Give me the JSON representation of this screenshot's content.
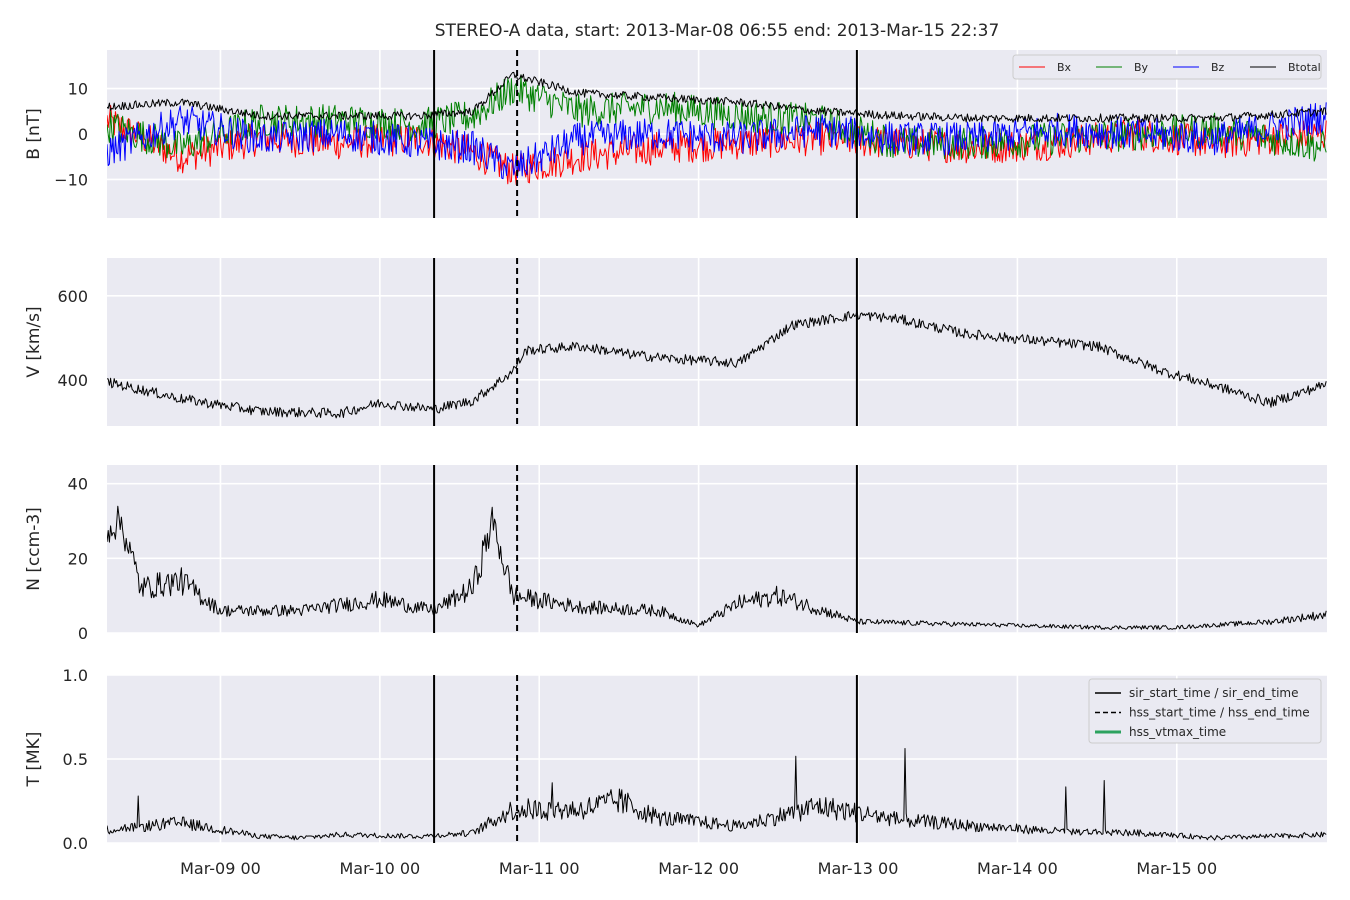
{
  "chart_data": {
    "type": "line",
    "title": "STEREO-A data, start: 2013-Mar-08 06:55  end: 2013-Mar-15 22:37",
    "x_range": [
      "2013-03-08T06:55",
      "2013-03-15T22:37"
    ],
    "x_ticks": [
      "Mar-09 00",
      "Mar-10 00",
      "Mar-11 00",
      "Mar-12 00",
      "Mar-13 00",
      "Mar-14 00",
      "Mar-15 00"
    ],
    "x_tick_dates": [
      "2013-03-09T00:00",
      "2013-03-10T00:00",
      "2013-03-11T00:00",
      "2013-03-12T00:00",
      "2013-03-13T00:00",
      "2013-03-14T00:00",
      "2013-03-15T00:00"
    ],
    "grid": true,
    "vertical_lines": [
      {
        "name": "sir_start_time",
        "time": "2013-03-10T08:10",
        "style": "solid"
      },
      {
        "name": "hss_start_time",
        "time": "2013-03-10T20:40",
        "style": "dashed"
      },
      {
        "name": "sir_end_time",
        "time": "2013-03-12T23:50",
        "style": "solid"
      }
    ],
    "panels": [
      {
        "id": "b",
        "ylabel": "B [nT]",
        "ylim": [
          -18.5,
          18.5
        ],
        "yticks": [
          -10,
          0,
          10
        ],
        "ytick_labels": [
          "−10",
          "0",
          "10"
        ],
        "legend": {
          "placement": "top-right",
          "entries": [
            "Bx",
            "By",
            "Bz",
            "Btotal"
          ]
        },
        "series": [
          {
            "name": "Bx",
            "color": "#ff0000",
            "x": [
              "2013-03-08T06:55",
              "2013-03-08T18:00",
              "2013-03-09T06:00",
              "2013-03-09T18:00",
              "2013-03-10T06:00",
              "2013-03-10T14:00",
              "2013-03-10T20:00",
              "2013-03-11T06:00",
              "2013-03-11T18:00",
              "2013-03-12T06:00",
              "2013-03-12T18:00",
              "2013-03-13T06:00",
              "2013-03-13T18:00",
              "2013-03-14T06:00",
              "2013-03-14T18:00",
              "2013-03-15T06:00",
              "2013-03-15T22:37"
            ],
            "values": [
              3,
              -5,
              -1,
              -2,
              -1,
              -4,
              -8,
              -5,
              -3,
              -2,
              -1,
              -2,
              -3,
              -2,
              0,
              -2,
              0
            ]
          },
          {
            "name": "By",
            "color": "#008000",
            "x": [
              "2013-03-08T06:55",
              "2013-03-08T18:00",
              "2013-03-09T06:00",
              "2013-03-09T18:00",
              "2013-03-10T06:00",
              "2013-03-10T14:00",
              "2013-03-10T20:00",
              "2013-03-11T06:00",
              "2013-03-11T18:00",
              "2013-03-12T06:00",
              "2013-03-12T18:00",
              "2013-03-13T06:00",
              "2013-03-13T18:00",
              "2013-03-14T06:00",
              "2013-03-14T18:00",
              "2013-03-15T06:00",
              "2013-03-15T22:37"
            ],
            "values": [
              2,
              -3,
              3,
              3,
              2,
              4,
              10,
              5,
              6,
              4,
              3,
              -2,
              -2,
              -1,
              0,
              1,
              -3
            ]
          },
          {
            "name": "Bz",
            "color": "#0000ff",
            "x": [
              "2013-03-08T06:55",
              "2013-03-08T18:00",
              "2013-03-09T06:00",
              "2013-03-09T18:00",
              "2013-03-10T06:00",
              "2013-03-10T14:00",
              "2013-03-10T20:00",
              "2013-03-11T06:00",
              "2013-03-11T18:00",
              "2013-03-12T06:00",
              "2013-03-12T18:00",
              "2013-03-13T06:00",
              "2013-03-13T18:00",
              "2013-03-14T06:00",
              "2013-03-14T18:00",
              "2013-03-15T06:00",
              "2013-03-15T22:37"
            ],
            "values": [
              -4,
              3,
              -1,
              0,
              -2,
              -3,
              -8,
              -1,
              0,
              -1,
              1,
              -1,
              -1,
              1,
              0,
              -1,
              4
            ]
          },
          {
            "name": "Btotal",
            "color": "#000000",
            "x": [
              "2013-03-08T06:55",
              "2013-03-08T18:00",
              "2013-03-09T06:00",
              "2013-03-09T18:00",
              "2013-03-10T06:00",
              "2013-03-10T14:00",
              "2013-03-10T20:00",
              "2013-03-11T06:00",
              "2013-03-11T18:00",
              "2013-03-12T06:00",
              "2013-03-12T18:00",
              "2013-03-13T06:00",
              "2013-03-13T18:00",
              "2013-03-14T06:00",
              "2013-03-14T18:00",
              "2013-03-15T06:00",
              "2013-03-15T22:37"
            ],
            "values": [
              6,
              7,
              4,
              4,
              4,
              5,
              13,
              9,
              8,
              7,
              5,
              4,
              3.5,
              3.5,
              3.5,
              3.5,
              5
            ]
          }
        ]
      },
      {
        "id": "v",
        "ylabel": "V [km/s]",
        "ylim": [
          290,
          690
        ],
        "yticks": [
          400,
          600
        ],
        "ytick_labels": [
          "400",
          "600"
        ],
        "series": [
          {
            "name": "V",
            "color": "#000000",
            "x": [
              "2013-03-08T06:55",
              "2013-03-08T18:00",
              "2013-03-09T06:00",
              "2013-03-09T18:00",
              "2013-03-10T00:00",
              "2013-03-10T08:00",
              "2013-03-10T14:00",
              "2013-03-10T20:00",
              "2013-03-10T22:00",
              "2013-03-11T06:00",
              "2013-03-11T14:00",
              "2013-03-11T20:00",
              "2013-03-12T06:00",
              "2013-03-12T14:00",
              "2013-03-12T23:50",
              "2013-03-13T06:00",
              "2013-03-13T16:00",
              "2013-03-14T02:00",
              "2013-03-14T12:00",
              "2013-03-14T22:00",
              "2013-03-15T06:00",
              "2013-03-15T14:00",
              "2013-03-15T22:37"
            ],
            "values": [
              395,
              355,
              325,
              320,
              345,
              330,
              350,
              420,
              470,
              480,
              460,
              450,
              440,
              530,
              555,
              545,
              510,
              495,
              480,
              420,
              385,
              345,
              390
            ]
          }
        ]
      },
      {
        "id": "n",
        "ylabel": "N [ccm-3]",
        "ylim": [
          0,
          45
        ],
        "yticks": [
          0,
          20,
          40
        ],
        "ytick_labels": [
          "0",
          "20",
          "40"
        ],
        "series": [
          {
            "name": "N",
            "color": "#000000",
            "x": [
              "2013-03-08T06:55",
              "2013-03-08T09:00",
              "2013-03-08T12:00",
              "2013-03-08T18:00",
              "2013-03-09T00:00",
              "2013-03-09T12:00",
              "2013-03-10T00:00",
              "2013-03-10T08:00",
              "2013-03-10T14:00",
              "2013-03-10T17:00",
              "2013-03-10T20:00",
              "2013-03-11T06:00",
              "2013-03-11T18:00",
              "2013-03-12T00:00",
              "2013-03-12T06:00",
              "2013-03-12T12:00",
              "2013-03-12T23:50",
              "2013-03-13T12:00",
              "2013-03-14T00:00",
              "2013-03-14T12:00",
              "2013-03-15T00:00",
              "2013-03-15T14:00",
              "2013-03-15T22:37"
            ],
            "values": [
              28,
              30,
              12,
              14,
              6,
              6,
              9,
              6,
              12,
              30,
              10,
              7,
              6,
              2,
              8,
              10,
              3,
              2.5,
              2,
              1.5,
              1.5,
              3,
              5
            ]
          }
        ]
      },
      {
        "id": "t",
        "ylabel": "T [MK]",
        "ylim": [
          0,
          1.0
        ],
        "yticks": [
          0.0,
          0.5,
          1.0
        ],
        "ytick_labels": [
          "0.0",
          "0.5",
          "1.0"
        ],
        "legend": {
          "placement": "top-right",
          "entries": [
            "sir_start_time / sir_end_time",
            "hss_start_time / hss_end_time",
            "hss_vtmax_time"
          ]
        },
        "series": [
          {
            "name": "T",
            "color": "#000000",
            "x": [
              "2013-03-08T06:55",
              "2013-03-08T18:00",
              "2013-03-09T06:00",
              "2013-03-09T12:00",
              "2013-03-09T18:00",
              "2013-03-10T06:00",
              "2013-03-10T14:00",
              "2013-03-10T20:00",
              "2013-03-11T06:00",
              "2013-03-11T12:00",
              "2013-03-11T18:00",
              "2013-03-12T06:00",
              "2013-03-12T18:00",
              "2013-03-13T06:00",
              "2013-03-13T18:00",
              "2013-03-14T06:00",
              "2013-03-14T18:00",
              "2013-03-15T06:00",
              "2013-03-15T22:37"
            ],
            "values": [
              0.08,
              0.12,
              0.04,
              0.03,
              0.05,
              0.04,
              0.06,
              0.2,
              0.2,
              0.25,
              0.15,
              0.1,
              0.22,
              0.14,
              0.1,
              0.07,
              0.06,
              0.03,
              0.05
            ]
          }
        ],
        "legend_colors": [
          "#000000",
          "#000000",
          "#2ca25f"
        ]
      }
    ]
  }
}
